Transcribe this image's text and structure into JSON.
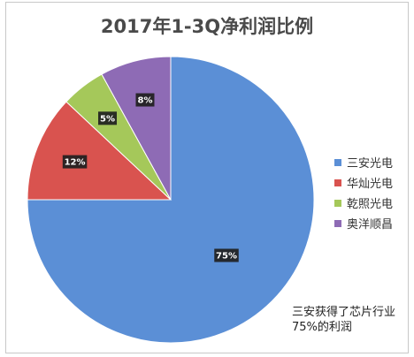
{
  "chart_data": {
    "type": "pie",
    "title": "2017年1-3Q净利润比例",
    "categories": [
      "三安光电",
      "华灿光电",
      "乾照光电",
      "奥洋顺昌"
    ],
    "values": [
      75,
      12,
      5,
      8
    ],
    "labels": [
      "75%",
      "12%",
      "5%",
      "8%"
    ],
    "colors": [
      "#5b8fd6",
      "#d9534f",
      "#a5c85a",
      "#8e6bb5"
    ],
    "legend_position": "right",
    "annotation": "三安获得了芯片行业75%的利润"
  }
}
